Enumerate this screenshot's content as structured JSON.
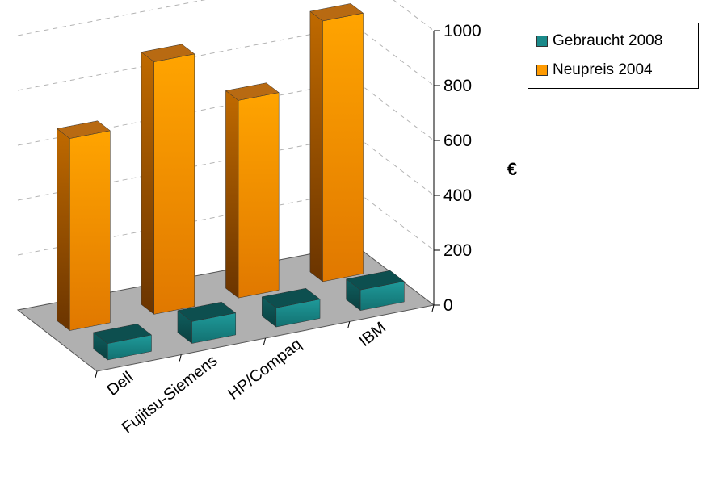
{
  "chart_data": {
    "type": "bar",
    "subtype": "3d-clustered-depth",
    "categories": [
      "Dell",
      "Fujitsu-Siemens",
      "HP/Compaq",
      "IBM"
    ],
    "series": [
      {
        "name": "Gebraucht 2008",
        "values": [
          60,
          80,
          70,
          75
        ],
        "color": "#1a8a8a"
      },
      {
        "name": "Neupreis 2004",
        "values": [
          700,
          920,
          720,
          950
        ],
        "color": "#ff9a00"
      }
    ],
    "ylabel": "€",
    "ylim": [
      0,
      1000
    ],
    "yticks": [
      "0",
      "200",
      "400",
      "600",
      "800",
      "1000"
    ],
    "grid": true,
    "legend_position": "top-right"
  },
  "legend": {
    "items": [
      {
        "label": "Gebraucht 2008",
        "color": "#1a8a8a"
      },
      {
        "label": "Neupreis 2004",
        "color": "#ff9a00"
      }
    ]
  },
  "colors": {
    "floor": "#b0b0b0",
    "gridline": "#b4b4b4"
  }
}
